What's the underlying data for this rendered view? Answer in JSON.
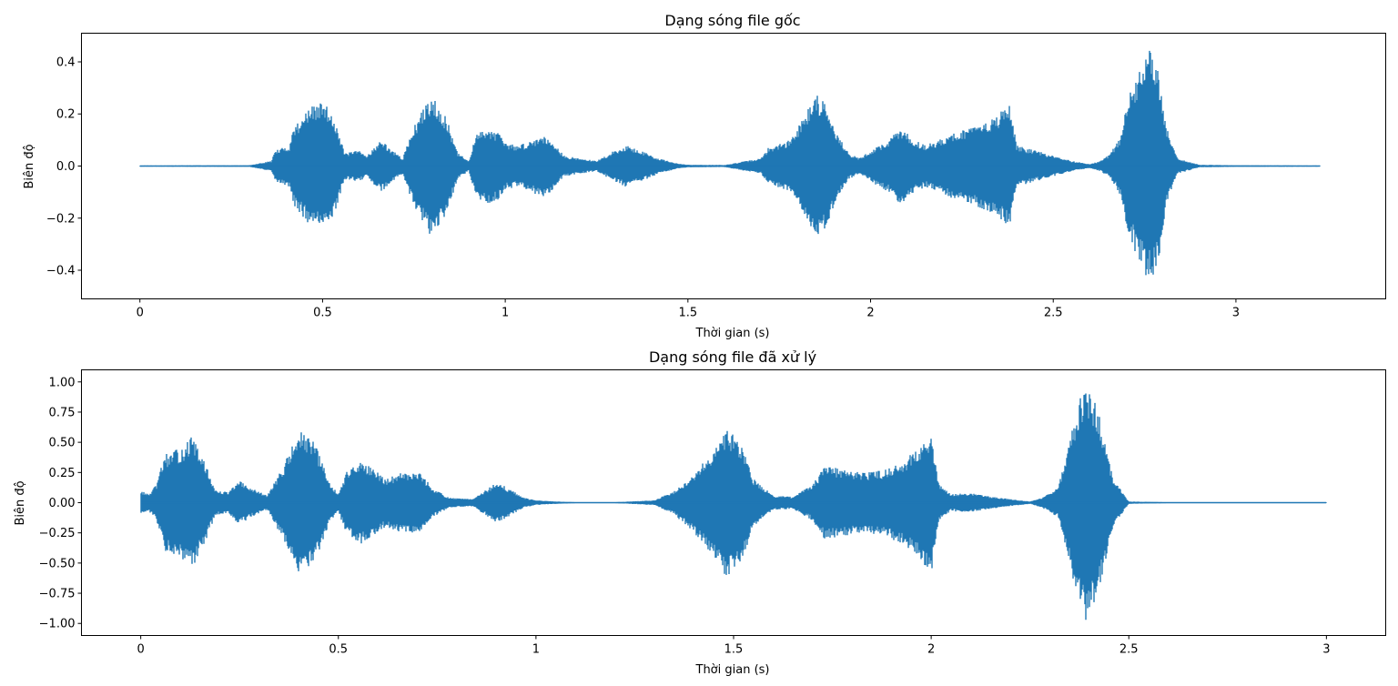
{
  "chart_data": [
    {
      "type": "line",
      "title": "Dạng sóng file gốc",
      "xlabel": "Thời gian (s)",
      "ylabel": "Biên độ",
      "xlim": [
        -0.16,
        3.41
      ],
      "ylim": [
        -0.51,
        0.51
      ],
      "xticks": [
        0,
        0.5,
        1,
        1.5,
        2,
        2.5,
        3
      ],
      "xtick_labels": [
        "0",
        "0.5",
        "1",
        "1.5",
        "2",
        "2.5",
        "3"
      ],
      "yticks": [
        0.4,
        0.2,
        0.0,
        -0.2,
        -0.4
      ],
      "ytick_labels": [
        "0.4",
        "0.2",
        "0.0",
        "−0.2",
        "−0.4"
      ],
      "color": "#1f77b4",
      "series": [
        {
          "envelope_t": [
            0,
            0.3,
            0.36,
            0.37,
            0.41,
            0.42,
            0.46,
            0.5,
            0.53,
            0.56,
            0.6,
            0.62,
            0.66,
            0.7,
            0.72,
            0.74,
            0.76,
            0.8,
            0.84,
            0.87,
            0.9,
            0.92,
            0.95,
            0.98,
            1.0,
            1.03,
            1.06,
            1.1,
            1.13,
            1.16,
            1.2,
            1.25,
            1.3,
            1.33,
            1.37,
            1.42,
            1.47,
            1.5,
            1.6,
            1.7,
            1.72,
            1.78,
            1.82,
            1.85,
            1.88,
            1.91,
            1.94,
            1.97,
            2.0,
            2.05,
            2.08,
            2.12,
            2.15,
            2.2,
            2.25,
            2.3,
            2.35,
            2.38,
            2.4,
            2.45,
            2.5,
            2.55,
            2.6,
            2.63,
            2.65,
            2.68,
            2.71,
            2.75,
            2.77,
            2.79,
            2.81,
            2.84,
            2.9,
            3.0,
            3.23
          ],
          "envelope_amp": [
            0.002,
            0.003,
            0.02,
            0.06,
            0.08,
            0.15,
            0.22,
            0.25,
            0.2,
            0.05,
            0.06,
            0.04,
            0.1,
            0.05,
            0.03,
            0.12,
            0.18,
            0.28,
            0.18,
            0.05,
            0.02,
            0.12,
            0.15,
            0.13,
            0.09,
            0.08,
            0.09,
            0.12,
            0.1,
            0.04,
            0.03,
            0.02,
            0.06,
            0.08,
            0.06,
            0.03,
            0.01,
            0.005,
            0.004,
            0.03,
            0.07,
            0.1,
            0.2,
            0.28,
            0.24,
            0.12,
            0.05,
            0.03,
            0.06,
            0.1,
            0.15,
            0.1,
            0.08,
            0.11,
            0.14,
            0.16,
            0.2,
            0.24,
            0.08,
            0.06,
            0.04,
            0.02,
            0.008,
            0.02,
            0.04,
            0.1,
            0.28,
            0.42,
            0.46,
            0.35,
            0.15,
            0.03,
            0.005,
            0.003,
            0.002
          ]
        }
      ]
    },
    {
      "type": "line",
      "title": "Dạng sóng file đã xử lý",
      "xlabel": "Thời gian (s)",
      "ylabel": "Biên độ",
      "xlim": [
        -0.15,
        3.15
      ],
      "ylim": [
        -1.1,
        1.1
      ],
      "xticks": [
        0,
        0.5,
        1,
        1.5,
        2,
        2.5,
        3
      ],
      "xtick_labels": [
        "0",
        "0.5",
        "1",
        "1.5",
        "2",
        "2.5",
        "3"
      ],
      "yticks": [
        1.0,
        0.75,
        0.5,
        0.25,
        0.0,
        -0.25,
        -0.5,
        -0.75,
        -1.0
      ],
      "ytick_labels": [
        "1.00",
        "0.75",
        "0.50",
        "0.25",
        "0.00",
        "−0.25",
        "−0.50",
        "−0.75",
        "−1.00"
      ],
      "color": "#1f77b4",
      "series": [
        {
          "envelope_t": [
            0,
            0.02,
            0.04,
            0.06,
            0.1,
            0.13,
            0.16,
            0.19,
            0.22,
            0.25,
            0.28,
            0.32,
            0.36,
            0.4,
            0.44,
            0.48,
            0.5,
            0.52,
            0.55,
            0.58,
            0.62,
            0.66,
            0.7,
            0.74,
            0.78,
            0.84,
            0.88,
            0.9,
            0.93,
            0.97,
            1.0,
            1.05,
            1.1,
            1.2,
            1.3,
            1.35,
            1.4,
            1.45,
            1.48,
            1.52,
            1.55,
            1.6,
            1.65,
            1.7,
            1.73,
            1.78,
            1.82,
            1.88,
            1.93,
            1.98,
            2.0,
            2.02,
            2.05,
            2.1,
            2.15,
            2.2,
            2.25,
            2.28,
            2.32,
            2.35,
            2.37,
            2.39,
            2.42,
            2.46,
            2.5,
            2.6,
            3.0
          ],
          "envelope_amp": [
            0.1,
            0.07,
            0.15,
            0.4,
            0.45,
            0.55,
            0.35,
            0.1,
            0.09,
            0.18,
            0.12,
            0.06,
            0.3,
            0.6,
            0.5,
            0.15,
            0.08,
            0.25,
            0.35,
            0.3,
            0.2,
            0.25,
            0.27,
            0.12,
            0.04,
            0.03,
            0.12,
            0.17,
            0.12,
            0.04,
            0.02,
            0.01,
            0.004,
            0.004,
            0.02,
            0.1,
            0.25,
            0.45,
            0.62,
            0.5,
            0.2,
            0.06,
            0.05,
            0.15,
            0.3,
            0.28,
            0.25,
            0.27,
            0.35,
            0.5,
            0.6,
            0.15,
            0.07,
            0.08,
            0.05,
            0.03,
            0.01,
            0.04,
            0.12,
            0.5,
            0.8,
            1.0,
            0.8,
            0.2,
            0.01,
            0.004,
            0.004
          ]
        }
      ]
    }
  ]
}
